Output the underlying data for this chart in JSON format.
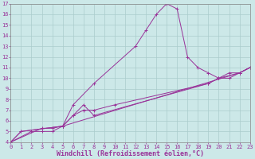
{
  "xlabel": "Windchill (Refroidissement éolien,°C)",
  "xlim": [
    0,
    23
  ],
  "ylim": [
    4,
    17
  ],
  "xticks": [
    0,
    1,
    2,
    3,
    4,
    5,
    6,
    7,
    8,
    9,
    10,
    11,
    12,
    13,
    14,
    15,
    16,
    17,
    18,
    19,
    20,
    21,
    22,
    23
  ],
  "yticks": [
    4,
    5,
    6,
    7,
    8,
    9,
    10,
    11,
    12,
    13,
    14,
    15,
    16,
    17
  ],
  "bg_color": "#cce8e8",
  "line_color": "#993399",
  "grid_color": "#aacccc",
  "series1_x": [
    0,
    1,
    5,
    6,
    8,
    12,
    13,
    14,
    15,
    16,
    17,
    18,
    19,
    20,
    22,
    23
  ],
  "series1_y": [
    4,
    5,
    5.5,
    7.5,
    9.5,
    13,
    14.5,
    16,
    17,
    16.5,
    12,
    11,
    10.5,
    10,
    10.5,
    11
  ],
  "series2_x": [
    0,
    1,
    5,
    22,
    23
  ],
  "series2_y": [
    4,
    5,
    5.5,
    10.5,
    11
  ],
  "series3_x": [
    0,
    3,
    4,
    5,
    6,
    7,
    8,
    19,
    20,
    21,
    22,
    23
  ],
  "series3_y": [
    4,
    5.3,
    5.3,
    5.5,
    6.5,
    7.5,
    6.5,
    9.5,
    10,
    10,
    10.5,
    11
  ],
  "series4_x": [
    0,
    2,
    3,
    4,
    5,
    6,
    7,
    8,
    10,
    19,
    20,
    21,
    22,
    23
  ],
  "series4_y": [
    4,
    5,
    5,
    5,
    5.5,
    6.5,
    7,
    7,
    7.5,
    9.5,
    10,
    10.5,
    10.5,
    11
  ],
  "xlabel_fontsize": 6,
  "tick_fontsize": 5
}
